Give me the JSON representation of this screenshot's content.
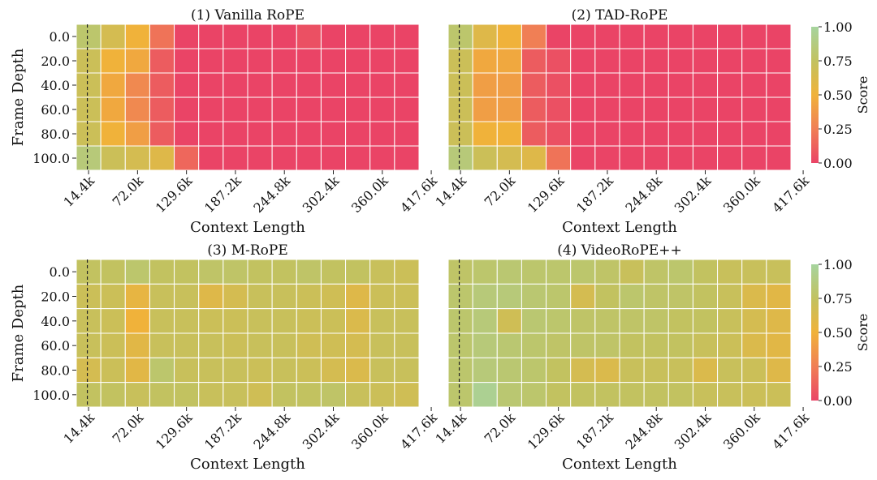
{
  "chart_data": [
    {
      "type": "heatmap",
      "title": "(1) Vanilla RoPE",
      "xlabel": "Context Length",
      "ylabel": "Frame Depth",
      "x_tick_labels": [
        "14.4k",
        "72.0k",
        "129.6k",
        "187.2k",
        "244.8k",
        "302.4k",
        "360.0k",
        "417.6k"
      ],
      "y_tick_labels": [
        "0.0",
        "20.0",
        "40.0",
        "60.0",
        "80.0",
        "100.0"
      ],
      "reference_line": "dashed vertical line at first column",
      "values": [
        [
          0.8,
          0.65,
          0.5,
          0.2,
          0.0,
          0.0,
          0.0,
          0.0,
          0.0,
          0.05,
          0.0,
          0.0,
          0.0,
          0.0
        ],
        [
          0.7,
          0.5,
          0.45,
          0.1,
          0.0,
          0.0,
          0.0,
          0.0,
          0.0,
          0.0,
          0.0,
          0.0,
          0.0,
          0.0
        ],
        [
          0.7,
          0.45,
          0.3,
          0.1,
          0.0,
          0.0,
          0.0,
          0.0,
          0.0,
          0.0,
          0.0,
          0.0,
          0.0,
          0.0
        ],
        [
          0.7,
          0.45,
          0.3,
          0.1,
          0.0,
          0.0,
          0.0,
          0.0,
          0.0,
          0.0,
          0.0,
          0.0,
          0.0,
          0.0
        ],
        [
          0.7,
          0.5,
          0.4,
          0.1,
          0.0,
          0.0,
          0.0,
          0.0,
          0.0,
          0.0,
          0.0,
          0.0,
          0.0,
          0.0
        ],
        [
          0.85,
          0.7,
          0.65,
          0.6,
          0.15,
          0.0,
          0.0,
          0.0,
          0.0,
          0.0,
          0.0,
          0.0,
          0.0,
          0.0
        ]
      ]
    },
    {
      "type": "heatmap",
      "title": "(2) TAD-RoPE",
      "xlabel": "Context Length",
      "ylabel": "",
      "x_tick_labels": [
        "14.4k",
        "72.0k",
        "129.6k",
        "187.2k",
        "244.8k",
        "302.4k",
        "360.0k",
        "417.6k"
      ],
      "y_tick_labels": [],
      "reference_line": "dashed vertical line at first column",
      "values": [
        [
          0.8,
          0.6,
          0.5,
          0.25,
          0.0,
          0.0,
          0.0,
          0.0,
          0.0,
          0.0,
          0.0,
          0.0,
          0.0,
          0.0
        ],
        [
          0.7,
          0.45,
          0.45,
          0.1,
          0.05,
          0.0,
          0.0,
          0.0,
          0.0,
          0.0,
          0.0,
          0.0,
          0.0,
          0.0
        ],
        [
          0.7,
          0.4,
          0.4,
          0.1,
          0.05,
          0.0,
          0.0,
          0.0,
          0.0,
          0.0,
          0.0,
          0.0,
          0.0,
          0.0
        ],
        [
          0.7,
          0.4,
          0.4,
          0.1,
          0.05,
          0.0,
          0.0,
          0.0,
          0.0,
          0.0,
          0.0,
          0.0,
          0.0,
          0.0
        ],
        [
          0.7,
          0.5,
          0.5,
          0.1,
          0.05,
          0.0,
          0.0,
          0.0,
          0.0,
          0.0,
          0.0,
          0.0,
          0.0,
          0.0
        ],
        [
          0.85,
          0.7,
          0.65,
          0.6,
          0.2,
          0.0,
          0.0,
          0.0,
          0.0,
          0.0,
          0.0,
          0.0,
          0.0,
          0.0
        ]
      ]
    },
    {
      "type": "heatmap",
      "title": "(3) M-RoPE",
      "xlabel": "Context Length",
      "ylabel": "Frame Depth",
      "x_tick_labels": [
        "14.4k",
        "72.0k",
        "129.6k",
        "187.2k",
        "244.8k",
        "302.4k",
        "360.0k",
        "417.6k"
      ],
      "y_tick_labels": [
        "0.0",
        "20.0",
        "40.0",
        "60.0",
        "80.0",
        "100.0"
      ],
      "reference_line": "dashed vertical line at first column",
      "values": [
        [
          0.75,
          0.75,
          0.8,
          0.75,
          0.75,
          0.78,
          0.78,
          0.75,
          0.75,
          0.78,
          0.75,
          0.75,
          0.72,
          0.7
        ],
        [
          0.7,
          0.7,
          0.55,
          0.72,
          0.72,
          0.6,
          0.65,
          0.72,
          0.72,
          0.7,
          0.68,
          0.6,
          0.7,
          0.7
        ],
        [
          0.72,
          0.7,
          0.5,
          0.72,
          0.72,
          0.7,
          0.7,
          0.72,
          0.72,
          0.7,
          0.7,
          0.62,
          0.72,
          0.72
        ],
        [
          0.72,
          0.7,
          0.58,
          0.72,
          0.72,
          0.72,
          0.7,
          0.72,
          0.72,
          0.68,
          0.68,
          0.65,
          0.72,
          0.72
        ],
        [
          0.65,
          0.7,
          0.58,
          0.8,
          0.72,
          0.72,
          0.72,
          0.7,
          0.72,
          0.7,
          0.65,
          0.62,
          0.72,
          0.72
        ],
        [
          0.75,
          0.75,
          0.72,
          0.75,
          0.75,
          0.72,
          0.72,
          0.68,
          0.75,
          0.75,
          0.78,
          0.72,
          0.7,
          0.68
        ]
      ]
    },
    {
      "type": "heatmap",
      "title": "(4) VideoRoPE++",
      "xlabel": "Context Length",
      "ylabel": "",
      "x_tick_labels": [
        "14.4k",
        "72.0k",
        "129.6k",
        "187.2k",
        "244.8k",
        "302.4k",
        "360.0k",
        "417.6k"
      ],
      "y_tick_labels": [],
      "reference_line": "dashed vertical line at first column",
      "values": [
        [
          0.78,
          0.8,
          0.82,
          0.8,
          0.8,
          0.8,
          0.78,
          0.72,
          0.78,
          0.8,
          0.75,
          0.72,
          0.72,
          0.72
        ],
        [
          0.8,
          0.85,
          0.85,
          0.82,
          0.8,
          0.65,
          0.75,
          0.8,
          0.78,
          0.78,
          0.75,
          0.72,
          0.62,
          0.58
        ],
        [
          0.8,
          0.85,
          0.68,
          0.82,
          0.8,
          0.78,
          0.78,
          0.78,
          0.78,
          0.75,
          0.75,
          0.72,
          0.65,
          0.6
        ],
        [
          0.8,
          0.85,
          0.82,
          0.8,
          0.78,
          0.78,
          0.78,
          0.75,
          0.75,
          0.75,
          0.72,
          0.7,
          0.62,
          0.58
        ],
        [
          0.8,
          0.85,
          0.82,
          0.8,
          0.75,
          0.65,
          0.62,
          0.72,
          0.72,
          0.72,
          0.62,
          0.72,
          0.7,
          0.6
        ],
        [
          0.8,
          0.95,
          0.82,
          0.8,
          0.75,
          0.75,
          0.75,
          0.75,
          0.75,
          0.75,
          0.72,
          0.72,
          0.7,
          0.7
        ]
      ]
    }
  ],
  "colorbars": [
    {
      "label": "Score",
      "tick_labels": [
        "1.00",
        "0.75",
        "0.50",
        "0.25",
        "0.00"
      ],
      "range": [
        0,
        1
      ]
    },
    {
      "label": "Score",
      "tick_labels": [
        "1.00",
        "0.75",
        "0.50",
        "0.25",
        "0.00"
      ],
      "range": [
        0,
        1
      ]
    }
  ],
  "colorscale": [
    "#ea4466",
    "#f07f55",
    "#f0b23a",
    "#c2c260",
    "#a6d49e"
  ]
}
